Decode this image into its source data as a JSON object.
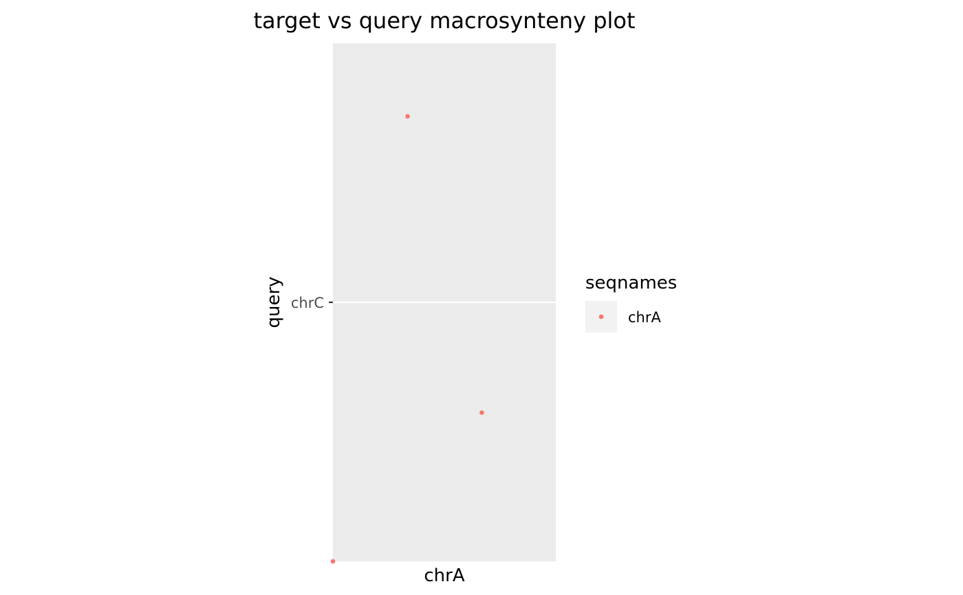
{
  "chart_data": {
    "type": "scatter",
    "title": "target vs query macrosynteny plot",
    "xlabel": "",
    "ylabel": "query",
    "x_category_label": "chrA",
    "y_tick_labels": [
      "chrC"
    ],
    "y_tick_values": [
      0.5
    ],
    "xlim": [
      0,
      1
    ],
    "ylim": [
      0,
      1
    ],
    "grid": true,
    "legend_position": "right",
    "legend_title": "seqnames",
    "series": [
      {
        "name": "chrA",
        "color": "#F8766D",
        "points": [
          {
            "x": 0.0,
            "y": 0.0
          },
          {
            "x": 0.335,
            "y": 0.859
          },
          {
            "x": 0.668,
            "y": 0.287
          }
        ]
      }
    ]
  }
}
